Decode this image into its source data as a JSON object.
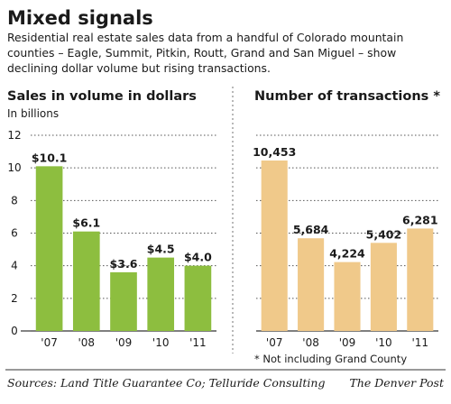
{
  "title": "Mixed signals",
  "subtitle_lines": [
    "Residential real estate sales data from a handful of Colorado mountain",
    "counties – Eagle, Summit, Pitkin, Routt, Grand and San Miguel – show",
    "declining dollar volume but rising transactions."
  ],
  "footer": {
    "sources": "Sources: Land Title Guarantee Co; Telluride Consulting",
    "credit": "The Denver Post"
  },
  "colors": {
    "sales_bar": "#8dbe3f",
    "transactions_bar": "#f0c98a",
    "gridline": "#555555",
    "divider": "#888888"
  },
  "chart_data": [
    {
      "type": "bar",
      "title": "Sales in volume in dollars",
      "unit": "In billions",
      "categories": [
        "'07",
        "'08",
        "'09",
        "'10",
        "'11"
      ],
      "values": [
        10.1,
        6.1,
        3.6,
        4.5,
        4.0
      ],
      "value_labels": [
        "$10.1",
        "$6.1",
        "$3.6",
        "$4.5",
        "$4.0"
      ],
      "ylim": [
        0,
        12
      ],
      "yticks": [
        0,
        2,
        4,
        6,
        8,
        10,
        12
      ],
      "grid": true,
      "color": "#8dbe3f"
    },
    {
      "type": "bar",
      "title": "Number of transactions *",
      "categories": [
        "'07",
        "'08",
        "'09",
        "'10",
        "'11"
      ],
      "values": [
        10453,
        5684,
        4224,
        5402,
        6281
      ],
      "value_labels": [
        "10,453",
        "5,684",
        "4,224",
        "5,402",
        "6,281"
      ],
      "ylim": [
        0,
        12000
      ],
      "grid": true,
      "color": "#f0c98a",
      "footnote": "* Not including Grand County"
    }
  ]
}
